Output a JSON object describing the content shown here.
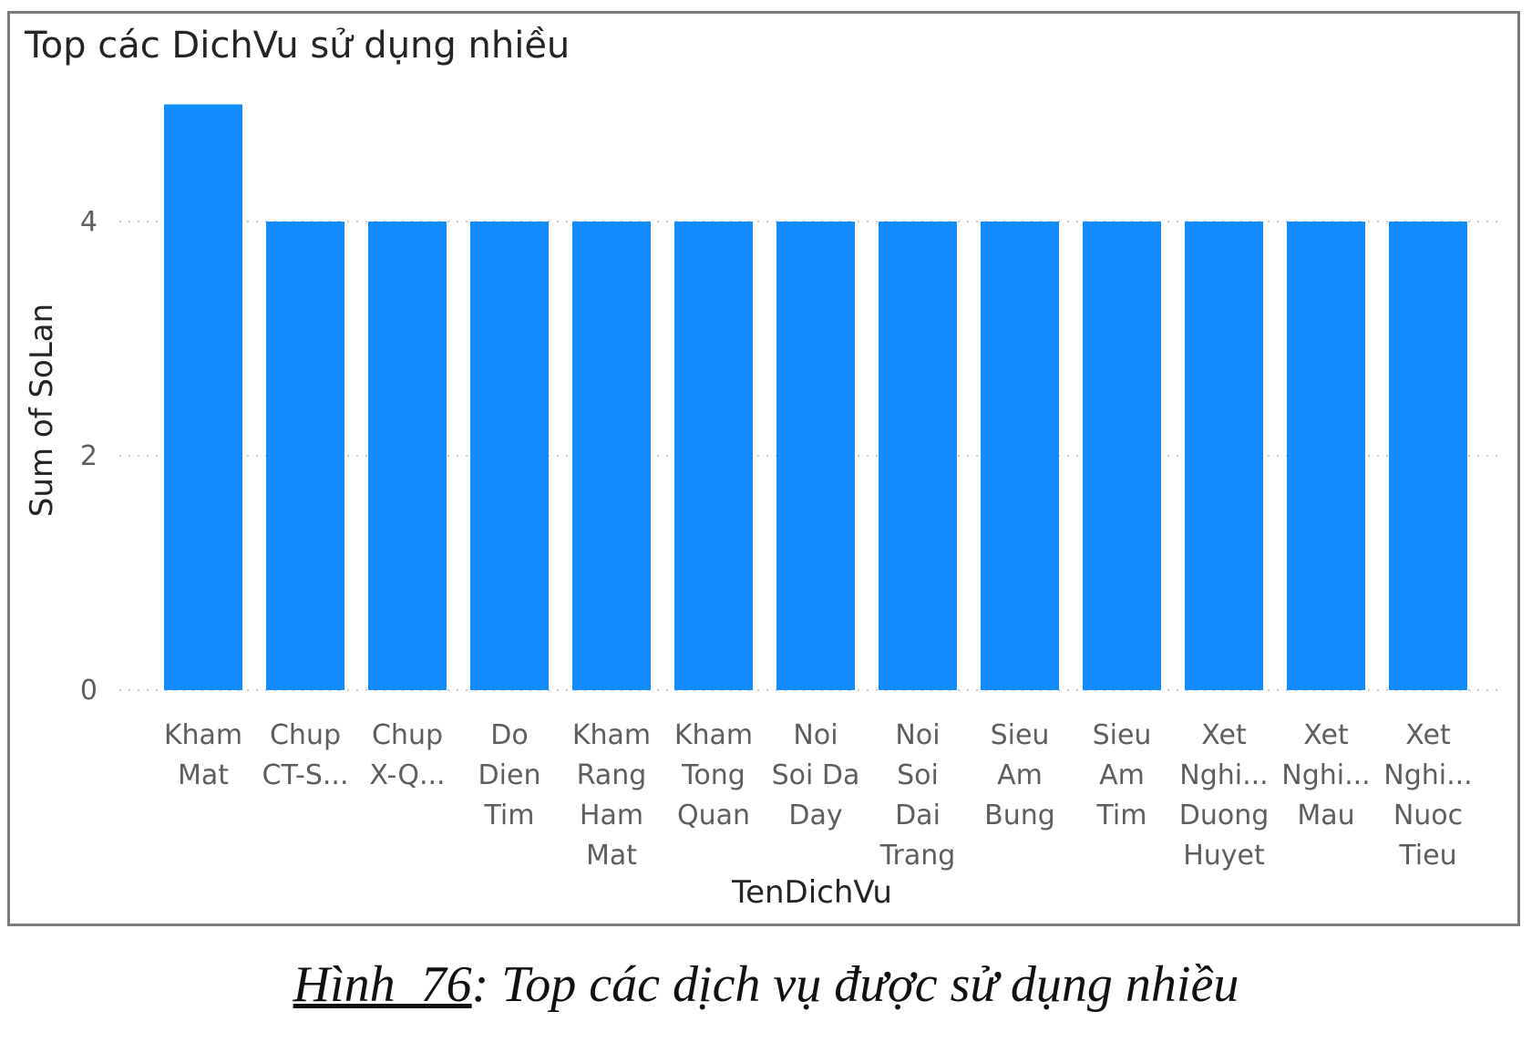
{
  "chart_data": {
    "type": "bar",
    "title": "Top các DichVu sử dụng nhiều",
    "xlabel": "TenDichVu",
    "ylabel": "Sum of SoLan",
    "ylim": [
      0,
      5
    ],
    "yticks": [
      0,
      2,
      4
    ],
    "grid": true,
    "bar_color": "#118dff",
    "categories": [
      [
        "Kham",
        "Mat"
      ],
      [
        "Chup",
        "CT-S..."
      ],
      [
        "Chup",
        "X-Q..."
      ],
      [
        "Do",
        "Dien",
        "Tim"
      ],
      [
        "Kham",
        "Rang",
        "Ham",
        "Mat"
      ],
      [
        "Kham",
        "Tong",
        "Quan"
      ],
      [
        "Noi",
        "Soi Da",
        "Day"
      ],
      [
        "Noi",
        "Soi",
        "Dai",
        "Trang"
      ],
      [
        "Sieu",
        "Am",
        "Bung"
      ],
      [
        "Sieu",
        "Am",
        "Tim"
      ],
      [
        "Xet",
        "Nghi...",
        "Duong",
        "Huyet"
      ],
      [
        "Xet",
        "Nghi...",
        "Mau"
      ],
      [
        "Xet",
        "Nghi...",
        "Nuoc",
        "Tieu"
      ]
    ],
    "values": [
      5,
      4,
      4,
      4,
      4,
      4,
      4,
      4,
      4,
      4,
      4,
      4,
      4
    ]
  },
  "caption": {
    "label": "Hình_76",
    "text": ": Top các dịch vụ được sử dụng nhiều"
  }
}
